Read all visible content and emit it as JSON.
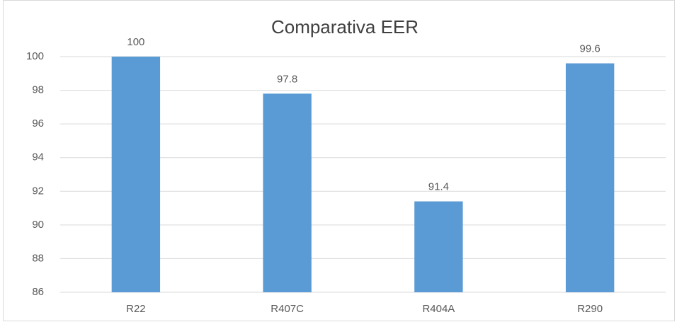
{
  "chart_data": {
    "type": "bar",
    "title": "Comparativa EER",
    "categories": [
      "R22",
      "R407C",
      "R404A",
      "R290"
    ],
    "values": [
      100,
      97.8,
      91.4,
      99.6
    ],
    "color": "#5b9bd5",
    "ylim": [
      86,
      100
    ],
    "yticks": [
      86,
      88,
      90,
      92,
      94,
      96,
      98,
      100
    ],
    "grid": true
  }
}
